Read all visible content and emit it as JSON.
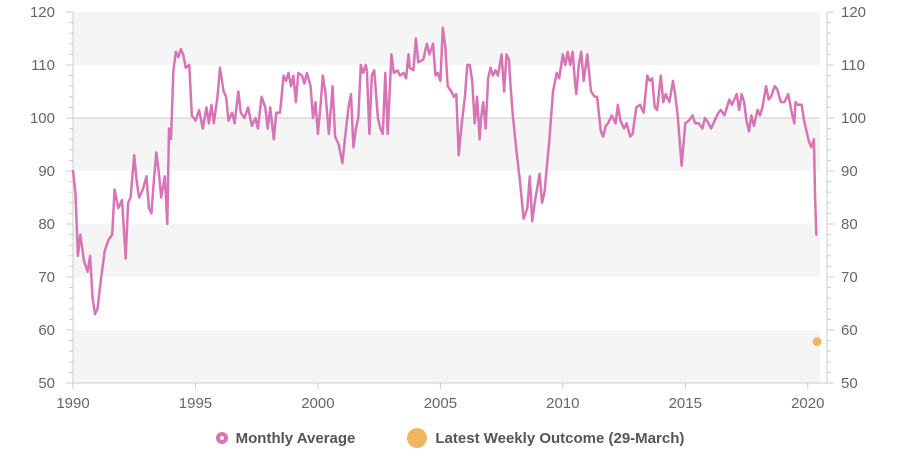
{
  "chart_data": {
    "type": "line",
    "title": "",
    "xlabel": "",
    "ylabel": "",
    "xlim": [
      1990,
      2020.5
    ],
    "ylim": [
      50,
      120
    ],
    "x_ticks": [
      "1990",
      "1995",
      "2000",
      "2005",
      "2010",
      "2015",
      "2020"
    ],
    "y_ticks": [
      "50",
      "60",
      "70",
      "80",
      "90",
      "100",
      "110",
      "120"
    ],
    "grid": "alternating horizontal bands",
    "legend_position": "bottom-center",
    "colors": {
      "monthly": "#d774b5",
      "weekly": "#f0b65e",
      "band": "#f5f5f5"
    },
    "series": [
      {
        "name": "Monthly Average",
        "points": [
          [
            1990.0,
            90
          ],
          [
            1990.1,
            86
          ],
          [
            1990.2,
            74
          ],
          [
            1990.3,
            78
          ],
          [
            1990.45,
            73
          ],
          [
            1990.6,
            71
          ],
          [
            1990.7,
            74
          ],
          [
            1990.8,
            66
          ],
          [
            1990.9,
            63
          ],
          [
            1991.0,
            64
          ],
          [
            1991.15,
            70
          ],
          [
            1991.3,
            75
          ],
          [
            1991.45,
            77
          ],
          [
            1991.6,
            78
          ],
          [
            1991.7,
            86.5
          ],
          [
            1991.85,
            83
          ],
          [
            1992.0,
            84.5
          ],
          [
            1992.15,
            73.5
          ],
          [
            1992.25,
            84
          ],
          [
            1992.35,
            85
          ],
          [
            1992.5,
            93
          ],
          [
            1992.6,
            88
          ],
          [
            1992.7,
            85
          ],
          [
            1992.85,
            86.5
          ],
          [
            1993.0,
            89
          ],
          [
            1993.1,
            83
          ],
          [
            1993.2,
            82
          ],
          [
            1993.3,
            88
          ],
          [
            1993.4,
            93.5
          ],
          [
            1993.5,
            90
          ],
          [
            1993.6,
            85
          ],
          [
            1993.75,
            89
          ],
          [
            1993.85,
            80
          ],
          [
            1993.92,
            98
          ],
          [
            1994.0,
            96
          ],
          [
            1994.1,
            109
          ],
          [
            1994.2,
            112.5
          ],
          [
            1994.3,
            111.5
          ],
          [
            1994.4,
            113
          ],
          [
            1994.5,
            112
          ],
          [
            1994.6,
            109.5
          ],
          [
            1994.75,
            110
          ],
          [
            1994.85,
            100.5
          ],
          [
            1995.0,
            99.5
          ],
          [
            1995.15,
            101.5
          ],
          [
            1995.3,
            98
          ],
          [
            1995.45,
            102
          ],
          [
            1995.55,
            99
          ],
          [
            1995.65,
            102.5
          ],
          [
            1995.75,
            99
          ],
          [
            1995.9,
            104
          ],
          [
            1996.0,
            109.5
          ],
          [
            1996.15,
            105
          ],
          [
            1996.25,
            104
          ],
          [
            1996.35,
            99.5
          ],
          [
            1996.5,
            101
          ],
          [
            1996.6,
            99
          ],
          [
            1996.75,
            105
          ],
          [
            1996.85,
            101
          ],
          [
            1997.0,
            100
          ],
          [
            1997.15,
            102
          ],
          [
            1997.3,
            98.5
          ],
          [
            1997.45,
            100
          ],
          [
            1997.55,
            98
          ],
          [
            1997.7,
            104
          ],
          [
            1997.85,
            102
          ],
          [
            1997.95,
            98
          ],
          [
            1998.05,
            102
          ],
          [
            1998.2,
            96
          ],
          [
            1998.3,
            101
          ],
          [
            1998.45,
            101
          ],
          [
            1998.6,
            108
          ],
          [
            1998.7,
            107
          ],
          [
            1998.8,
            108.5
          ],
          [
            1998.9,
            106
          ],
          [
            1999.0,
            108
          ],
          [
            1999.1,
            103
          ],
          [
            1999.2,
            108.5
          ],
          [
            1999.35,
            108
          ],
          [
            1999.45,
            106.5
          ],
          [
            1999.55,
            108.5
          ],
          [
            1999.7,
            106
          ],
          [
            1999.8,
            100
          ],
          [
            1999.9,
            103
          ],
          [
            2000.0,
            97
          ],
          [
            2000.1,
            102
          ],
          [
            2000.2,
            108
          ],
          [
            2000.3,
            105
          ],
          [
            2000.45,
            97
          ],
          [
            2000.6,
            106
          ],
          [
            2000.7,
            96.5
          ],
          [
            2000.85,
            95
          ],
          [
            2001.0,
            91.5
          ],
          [
            2001.1,
            96
          ],
          [
            2001.25,
            102
          ],
          [
            2001.35,
            104.5
          ],
          [
            2001.45,
            94.5
          ],
          [
            2001.55,
            98
          ],
          [
            2001.65,
            100
          ],
          [
            2001.75,
            110
          ],
          [
            2001.85,
            108.5
          ],
          [
            2001.95,
            110
          ],
          [
            2002.0,
            109
          ],
          [
            2002.1,
            97
          ],
          [
            2002.2,
            108
          ],
          [
            2002.3,
            109
          ],
          [
            2002.45,
            100
          ],
          [
            2002.55,
            98
          ],
          [
            2002.65,
            97
          ],
          [
            2002.75,
            108.5
          ],
          [
            2002.85,
            97
          ],
          [
            2003.0,
            112
          ],
          [
            2003.1,
            108.5
          ],
          [
            2003.25,
            109
          ],
          [
            2003.35,
            108
          ],
          [
            2003.5,
            108.5
          ],
          [
            2003.6,
            107.5
          ],
          [
            2003.7,
            112
          ],
          [
            2003.75,
            109.5
          ],
          [
            2003.9,
            109
          ],
          [
            2004.0,
            115
          ],
          [
            2004.1,
            110.5
          ],
          [
            2004.3,
            111
          ],
          [
            2004.45,
            114
          ],
          [
            2004.55,
            112
          ],
          [
            2004.7,
            114
          ],
          [
            2004.8,
            108
          ],
          [
            2004.9,
            108.5
          ],
          [
            2005.0,
            107
          ],
          [
            2005.1,
            117
          ],
          [
            2005.2,
            113.5
          ],
          [
            2005.3,
            106
          ],
          [
            2005.45,
            105
          ],
          [
            2005.55,
            104
          ],
          [
            2005.65,
            104.5
          ],
          [
            2005.75,
            93
          ],
          [
            2005.85,
            98
          ],
          [
            2006.0,
            104
          ],
          [
            2006.1,
            110
          ],
          [
            2006.2,
            110
          ],
          [
            2006.3,
            107
          ],
          [
            2006.4,
            99
          ],
          [
            2006.5,
            104
          ],
          [
            2006.6,
            96
          ],
          [
            2006.65,
            99.5
          ],
          [
            2006.75,
            103
          ],
          [
            2006.85,
            98
          ],
          [
            2006.95,
            107.5
          ],
          [
            2007.05,
            109.5
          ],
          [
            2007.15,
            108
          ],
          [
            2007.25,
            109
          ],
          [
            2007.35,
            108
          ],
          [
            2007.5,
            112
          ],
          [
            2007.6,
            105
          ],
          [
            2007.7,
            112
          ],
          [
            2007.8,
            111
          ],
          [
            2007.85,
            107
          ],
          [
            2007.95,
            101
          ],
          [
            2008.1,
            94
          ],
          [
            2008.25,
            88
          ],
          [
            2008.4,
            81
          ],
          [
            2008.55,
            83
          ],
          [
            2008.65,
            89
          ],
          [
            2008.75,
            80.5
          ],
          [
            2008.85,
            84
          ],
          [
            2009.05,
            89.5
          ],
          [
            2009.15,
            84
          ],
          [
            2009.25,
            86
          ],
          [
            2009.45,
            96
          ],
          [
            2009.6,
            105
          ],
          [
            2009.75,
            108.5
          ],
          [
            2009.85,
            107.5
          ],
          [
            2010.0,
            112
          ],
          [
            2010.1,
            110
          ],
          [
            2010.2,
            112.5
          ],
          [
            2010.3,
            110
          ],
          [
            2010.4,
            112.5
          ],
          [
            2010.5,
            106.5
          ],
          [
            2010.55,
            104.5
          ],
          [
            2010.65,
            110
          ],
          [
            2010.75,
            112.5
          ],
          [
            2010.85,
            107
          ],
          [
            2011.0,
            112
          ],
          [
            2011.15,
            105
          ],
          [
            2011.3,
            104
          ],
          [
            2011.4,
            104
          ],
          [
            2011.55,
            97.5
          ],
          [
            2011.65,
            96.5
          ],
          [
            2011.75,
            98.5
          ],
          [
            2011.85,
            99
          ],
          [
            2012.0,
            100.5
          ],
          [
            2012.15,
            99
          ],
          [
            2012.25,
            102.5
          ],
          [
            2012.35,
            99.5
          ],
          [
            2012.5,
            98
          ],
          [
            2012.6,
            99
          ],
          [
            2012.75,
            96.5
          ],
          [
            2012.85,
            97
          ],
          [
            2013.0,
            102
          ],
          [
            2013.15,
            102.5
          ],
          [
            2013.3,
            101
          ],
          [
            2013.45,
            108
          ],
          [
            2013.55,
            107
          ],
          [
            2013.65,
            107.5
          ],
          [
            2013.75,
            102
          ],
          [
            2013.85,
            101.5
          ],
          [
            2014.0,
            108
          ],
          [
            2014.1,
            103
          ],
          [
            2014.2,
            104.5
          ],
          [
            2014.35,
            103
          ],
          [
            2014.5,
            107
          ],
          [
            2014.6,
            104
          ],
          [
            2014.7,
            100
          ],
          [
            2014.85,
            91
          ],
          [
            2015.0,
            99
          ],
          [
            2015.15,
            99.5
          ],
          [
            2015.3,
            100.5
          ],
          [
            2015.4,
            99
          ],
          [
            2015.55,
            99
          ],
          [
            2015.7,
            98
          ],
          [
            2015.8,
            100
          ],
          [
            2015.95,
            99
          ],
          [
            2016.05,
            98
          ],
          [
            2016.2,
            99.5
          ],
          [
            2016.35,
            101
          ],
          [
            2016.45,
            101.5
          ],
          [
            2016.6,
            100.5
          ],
          [
            2016.7,
            102
          ],
          [
            2016.8,
            103.5
          ],
          [
            2016.9,
            102.5
          ],
          [
            2017.0,
            103.5
          ],
          [
            2017.1,
            104.5
          ],
          [
            2017.2,
            101.5
          ],
          [
            2017.3,
            104.5
          ],
          [
            2017.4,
            103
          ],
          [
            2017.5,
            99.5
          ],
          [
            2017.6,
            97.5
          ],
          [
            2017.7,
            100.5
          ],
          [
            2017.8,
            98.5
          ],
          [
            2017.95,
            101.5
          ],
          [
            2018.05,
            100.5
          ],
          [
            2018.15,
            102
          ],
          [
            2018.3,
            106
          ],
          [
            2018.4,
            103.5
          ],
          [
            2018.5,
            104
          ],
          [
            2018.65,
            106
          ],
          [
            2018.75,
            105.5
          ],
          [
            2018.9,
            103
          ],
          [
            2019.05,
            103
          ],
          [
            2019.2,
            104.5
          ],
          [
            2019.35,
            101
          ],
          [
            2019.45,
            99
          ],
          [
            2019.5,
            103
          ],
          [
            2019.6,
            102.5
          ],
          [
            2019.75,
            102.5
          ],
          [
            2019.85,
            99.5
          ],
          [
            2019.95,
            97.5
          ],
          [
            2020.05,
            95.5
          ],
          [
            2020.15,
            94.5
          ],
          [
            2020.25,
            96
          ],
          [
            2020.3,
            85
          ],
          [
            2020.35,
            78
          ]
        ]
      },
      {
        "name": "Latest Weekly Outcome (29-March)",
        "points": [
          [
            2020.3,
            57.8
          ]
        ]
      }
    ]
  },
  "legend": {
    "monthly": "Monthly Average",
    "weekly": "Latest Weekly Outcome (29-March)"
  }
}
